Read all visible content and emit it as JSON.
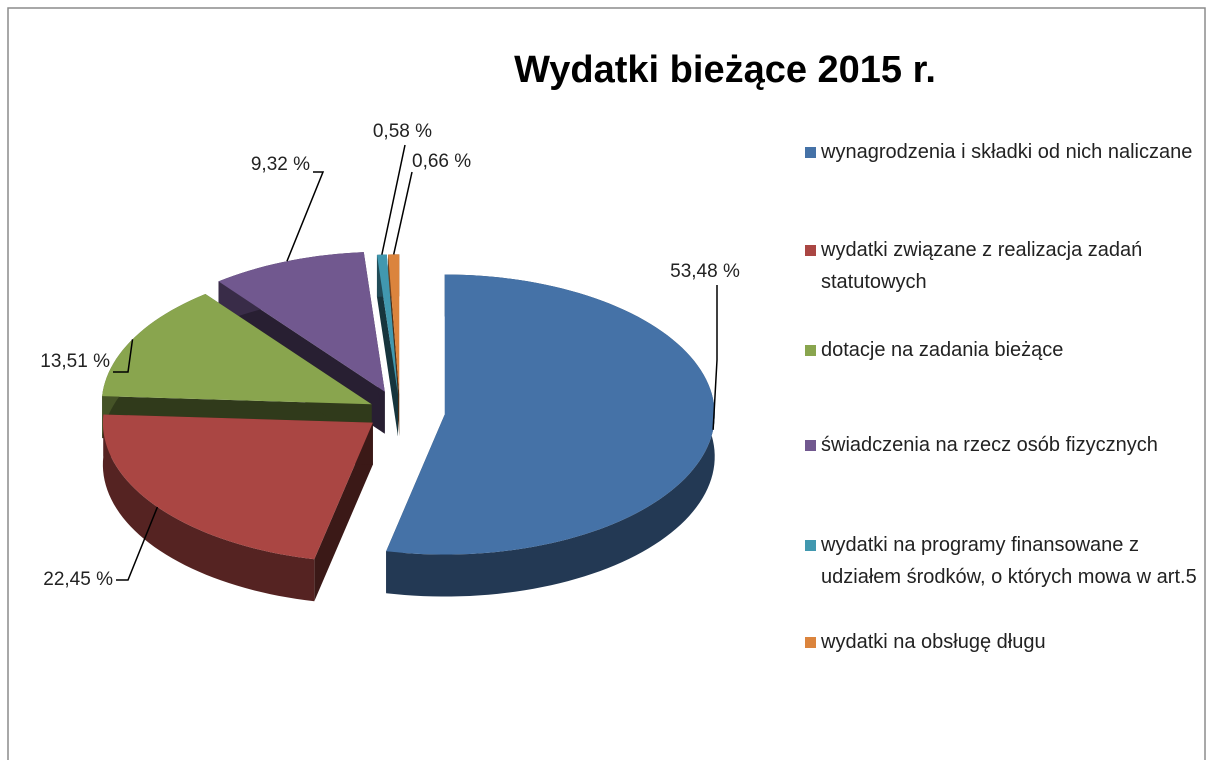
{
  "chart_data": {
    "type": "pie",
    "title": "Wydatki bieżące 2015 r.",
    "categories": [
      "wynagrodzenia i składki od nich naliczane",
      "wydatki związane z realizacja zadań statutowych",
      "dotacje na zadania bieżące",
      "świadczenia na rzecz osób fizycznych",
      "wydatki na programy finansowane z udziałem środków, o których mowa w art.5",
      "wydatki na obsługę długu"
    ],
    "values": [
      53.48,
      22.45,
      13.51,
      9.32,
      0.58,
      0.66
    ],
    "value_labels": [
      "53,48 %",
      "22,45 %",
      "13,51 %",
      "9,32 %",
      "0,58 %",
      "0,66 %"
    ],
    "colors": [
      "#4572a7",
      "#aa4643",
      "#89a54e",
      "#71588f",
      "#4198af",
      "#db843d"
    ],
    "legend": "right"
  }
}
